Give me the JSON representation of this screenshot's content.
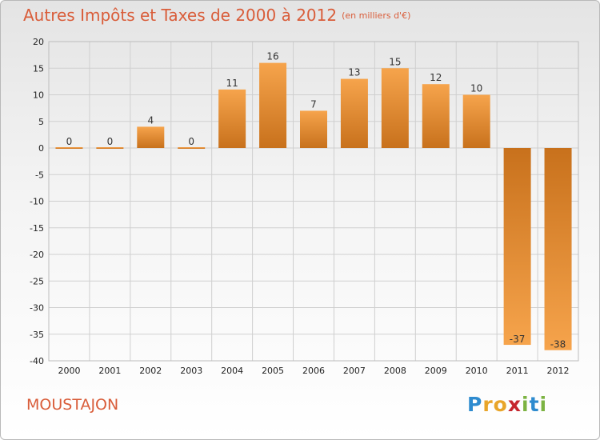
{
  "header": {
    "title": "Autres Impôts et Taxes de 2000 à 2012",
    "unit": "(en milliers d'€)"
  },
  "footer": {
    "commune": "MOUSTAJON",
    "logo_letters": [
      "P",
      "r",
      "o",
      "x",
      "i",
      "t",
      "i"
    ],
    "logo_colors": [
      "#2e8bcf",
      "#e8a52a",
      "#e8a52a",
      "#c6262e",
      "#7cb342",
      "#2e8bcf",
      "#7cb342"
    ]
  },
  "colors": {
    "bar_light": "#f6a44c",
    "bar_dark": "#c8711c",
    "title": "#d95d3a",
    "grid": "#cfcfcf"
  },
  "chart_data": {
    "type": "bar",
    "title": "Autres Impôts et Taxes de 2000 à 2012",
    "subtitle": "(en milliers d'€)",
    "xlabel": "",
    "ylabel": "",
    "categories": [
      "2000",
      "2001",
      "2002",
      "2003",
      "2004",
      "2005",
      "2006",
      "2007",
      "2008",
      "2009",
      "2010",
      "2011",
      "2012"
    ],
    "values": [
      0,
      0,
      4,
      0,
      11,
      16,
      7,
      13,
      15,
      12,
      10,
      -37,
      -38
    ],
    "ylim": [
      -40,
      20
    ],
    "yticks": [
      20,
      15,
      10,
      5,
      0,
      -5,
      -10,
      -15,
      -20,
      -25,
      -30,
      -35,
      -40
    ],
    "grid": true,
    "legend": "none"
  }
}
